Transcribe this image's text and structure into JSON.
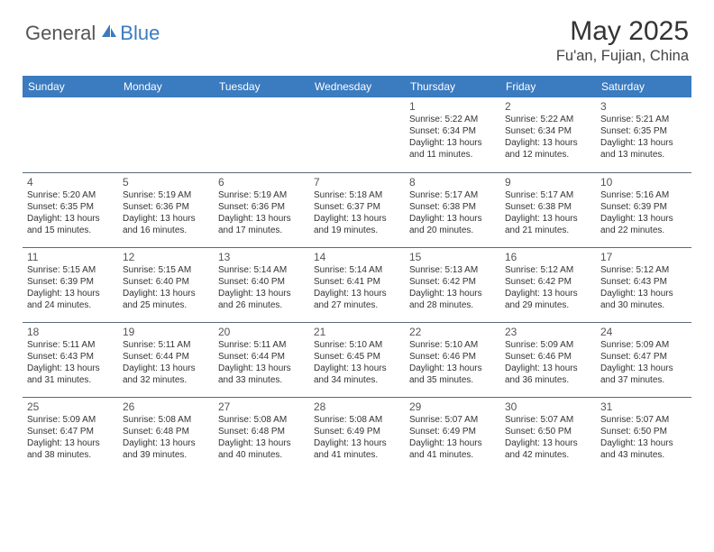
{
  "brand": {
    "text_general": "General",
    "text_blue": "Blue",
    "logo_color": "#3b7bbf"
  },
  "header": {
    "month_title": "May 2025",
    "location": "Fu'an, Fujian, China"
  },
  "colors": {
    "header_bg": "#3b7bbf",
    "header_text": "#ffffff",
    "border": "#5c6a7a",
    "text": "#333333",
    "day_num": "#555555"
  },
  "day_headers": [
    "Sunday",
    "Monday",
    "Tuesday",
    "Wednesday",
    "Thursday",
    "Friday",
    "Saturday"
  ],
  "weeks": [
    [
      null,
      null,
      null,
      null,
      {
        "n": "1",
        "sr": "5:22 AM",
        "ss": "6:34 PM",
        "dl": "13 hours and 11 minutes."
      },
      {
        "n": "2",
        "sr": "5:22 AM",
        "ss": "6:34 PM",
        "dl": "13 hours and 12 minutes."
      },
      {
        "n": "3",
        "sr": "5:21 AM",
        "ss": "6:35 PM",
        "dl": "13 hours and 13 minutes."
      }
    ],
    [
      {
        "n": "4",
        "sr": "5:20 AM",
        "ss": "6:35 PM",
        "dl": "13 hours and 15 minutes."
      },
      {
        "n": "5",
        "sr": "5:19 AM",
        "ss": "6:36 PM",
        "dl": "13 hours and 16 minutes."
      },
      {
        "n": "6",
        "sr": "5:19 AM",
        "ss": "6:36 PM",
        "dl": "13 hours and 17 minutes."
      },
      {
        "n": "7",
        "sr": "5:18 AM",
        "ss": "6:37 PM",
        "dl": "13 hours and 19 minutes."
      },
      {
        "n": "8",
        "sr": "5:17 AM",
        "ss": "6:38 PM",
        "dl": "13 hours and 20 minutes."
      },
      {
        "n": "9",
        "sr": "5:17 AM",
        "ss": "6:38 PM",
        "dl": "13 hours and 21 minutes."
      },
      {
        "n": "10",
        "sr": "5:16 AM",
        "ss": "6:39 PM",
        "dl": "13 hours and 22 minutes."
      }
    ],
    [
      {
        "n": "11",
        "sr": "5:15 AM",
        "ss": "6:39 PM",
        "dl": "13 hours and 24 minutes."
      },
      {
        "n": "12",
        "sr": "5:15 AM",
        "ss": "6:40 PM",
        "dl": "13 hours and 25 minutes."
      },
      {
        "n": "13",
        "sr": "5:14 AM",
        "ss": "6:40 PM",
        "dl": "13 hours and 26 minutes."
      },
      {
        "n": "14",
        "sr": "5:14 AM",
        "ss": "6:41 PM",
        "dl": "13 hours and 27 minutes."
      },
      {
        "n": "15",
        "sr": "5:13 AM",
        "ss": "6:42 PM",
        "dl": "13 hours and 28 minutes."
      },
      {
        "n": "16",
        "sr": "5:12 AM",
        "ss": "6:42 PM",
        "dl": "13 hours and 29 minutes."
      },
      {
        "n": "17",
        "sr": "5:12 AM",
        "ss": "6:43 PM",
        "dl": "13 hours and 30 minutes."
      }
    ],
    [
      {
        "n": "18",
        "sr": "5:11 AM",
        "ss": "6:43 PM",
        "dl": "13 hours and 31 minutes."
      },
      {
        "n": "19",
        "sr": "5:11 AM",
        "ss": "6:44 PM",
        "dl": "13 hours and 32 minutes."
      },
      {
        "n": "20",
        "sr": "5:11 AM",
        "ss": "6:44 PM",
        "dl": "13 hours and 33 minutes."
      },
      {
        "n": "21",
        "sr": "5:10 AM",
        "ss": "6:45 PM",
        "dl": "13 hours and 34 minutes."
      },
      {
        "n": "22",
        "sr": "5:10 AM",
        "ss": "6:46 PM",
        "dl": "13 hours and 35 minutes."
      },
      {
        "n": "23",
        "sr": "5:09 AM",
        "ss": "6:46 PM",
        "dl": "13 hours and 36 minutes."
      },
      {
        "n": "24",
        "sr": "5:09 AM",
        "ss": "6:47 PM",
        "dl": "13 hours and 37 minutes."
      }
    ],
    [
      {
        "n": "25",
        "sr": "5:09 AM",
        "ss": "6:47 PM",
        "dl": "13 hours and 38 minutes."
      },
      {
        "n": "26",
        "sr": "5:08 AM",
        "ss": "6:48 PM",
        "dl": "13 hours and 39 minutes."
      },
      {
        "n": "27",
        "sr": "5:08 AM",
        "ss": "6:48 PM",
        "dl": "13 hours and 40 minutes."
      },
      {
        "n": "28",
        "sr": "5:08 AM",
        "ss": "6:49 PM",
        "dl": "13 hours and 41 minutes."
      },
      {
        "n": "29",
        "sr": "5:07 AM",
        "ss": "6:49 PM",
        "dl": "13 hours and 41 minutes."
      },
      {
        "n": "30",
        "sr": "5:07 AM",
        "ss": "6:50 PM",
        "dl": "13 hours and 42 minutes."
      },
      {
        "n": "31",
        "sr": "5:07 AM",
        "ss": "6:50 PM",
        "dl": "13 hours and 43 minutes."
      }
    ]
  ],
  "labels": {
    "sunrise_prefix": "Sunrise: ",
    "sunset_prefix": "Sunset: ",
    "daylight_prefix": "Daylight: "
  }
}
